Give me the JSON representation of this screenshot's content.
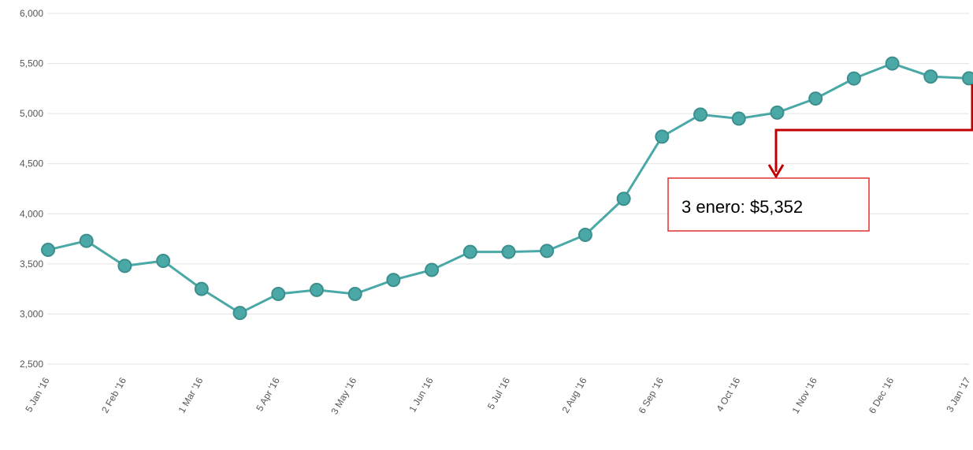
{
  "chart_data": {
    "type": "line",
    "categories": [
      "5 Jan '16",
      null,
      "2 Feb '16",
      null,
      "1 Mar '16",
      null,
      "5 Apr '16",
      null,
      "3 May '16",
      null,
      "1 Jun '16",
      null,
      "5 Jul '16",
      null,
      "2 Aug '16",
      null,
      "6 Sep '16",
      null,
      "4 Oct '16",
      null,
      "1 Nov '16",
      null,
      "6 Dec '16",
      null,
      "3 Jan '17"
    ],
    "series": [
      {
        "color": "#4aa9a7",
        "values": [
          3640,
          3730,
          3480,
          3530,
          3250,
          3010,
          3200,
          3240,
          3200,
          3340,
          3440,
          3620,
          3620,
          3630,
          3790,
          4150,
          4770,
          4990,
          4950,
          5010,
          5150,
          5350,
          5500,
          5370,
          5352
        ]
      }
    ],
    "ylim": [
      2500,
      6000
    ],
    "yticks": [
      {
        "value": 2500,
        "label": "2,500"
      },
      {
        "value": 3000,
        "label": "3,000"
      },
      {
        "value": 3500,
        "label": "3,500"
      },
      {
        "value": 4000,
        "label": "4,000"
      },
      {
        "value": 4500,
        "label": "4,500"
      },
      {
        "value": 5000,
        "label": "5,000"
      },
      {
        "value": 5500,
        "label": "5,500"
      },
      {
        "value": 6000,
        "label": "6,000"
      }
    ],
    "grid": true,
    "annotation": "3 enero: $5,352"
  }
}
